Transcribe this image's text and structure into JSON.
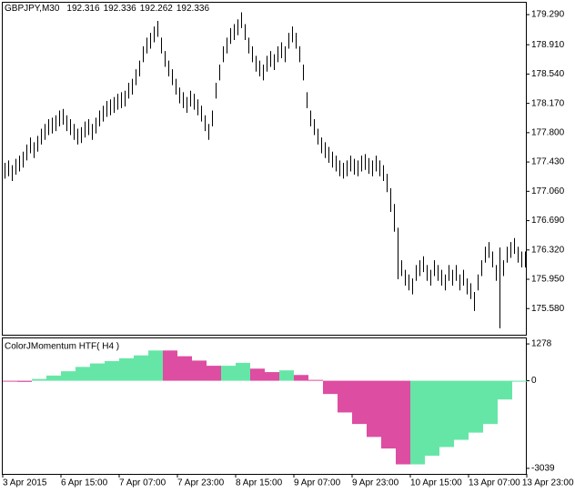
{
  "chart_data": [
    {
      "type": "hlbar",
      "title": "GBPJPY,M30",
      "quote": [
        192.316,
        192.336,
        192.262,
        192.336
      ],
      "color": "#000000",
      "xlim": [
        0,
        144
      ],
      "xticks": [
        {
          "value": 0,
          "label": "3 Apr 2015"
        },
        {
          "value": 16,
          "label": "6 Apr 15:00"
        },
        {
          "value": 32,
          "label": "7 Apr 07:00"
        },
        {
          "value": 48,
          "label": "7 Apr 23:00"
        },
        {
          "value": 64,
          "label": "8 Apr 15:00"
        },
        {
          "value": 80,
          "label": "9 Apr 07:00"
        },
        {
          "value": 96,
          "label": "9 Apr 23:00"
        },
        {
          "value": 112,
          "label": "10 Apr 15:00"
        },
        {
          "value": 128,
          "label": "13 Apr 07:00"
        },
        {
          "value": 144,
          "label": "13 Apr 23:00"
        }
      ],
      "ylim": [
        175.25,
        179.44
      ],
      "yticks": [
        {
          "value": 179.29,
          "label": "179.290"
        },
        {
          "value": 178.91,
          "label": "178.910"
        },
        {
          "value": 178.54,
          "label": "178.540"
        },
        {
          "value": 178.17,
          "label": "178.170"
        },
        {
          "value": 177.8,
          "label": "177.800"
        },
        {
          "value": 177.43,
          "label": "177.430"
        },
        {
          "value": 177.06,
          "label": "177.060"
        },
        {
          "value": 176.69,
          "label": "176.690"
        },
        {
          "value": 176.32,
          "label": "176.320"
        },
        {
          "value": 175.95,
          "label": "175.950"
        },
        {
          "value": 175.58,
          "label": "175.580"
        }
      ],
      "high": [
        177.42,
        177.45,
        177.39,
        177.47,
        177.51,
        177.56,
        177.65,
        177.74,
        177.68,
        177.76,
        177.85,
        177.91,
        177.97,
        177.99,
        178.02,
        178.08,
        178.1,
        178.02,
        177.97,
        177.91,
        177.85,
        177.87,
        177.94,
        177.97,
        177.91,
        177.99,
        178.08,
        178.14,
        178.2,
        178.22,
        178.25,
        178.29,
        178.31,
        178.33,
        178.43,
        178.48,
        178.6,
        178.71,
        178.89,
        179.0,
        179.06,
        179.14,
        179.21,
        179.0,
        178.83,
        178.71,
        178.6,
        178.48,
        178.37,
        178.31,
        178.25,
        178.33,
        178.29,
        178.22,
        178.14,
        178.02,
        177.91,
        178.08,
        178.43,
        178.66,
        178.89,
        179.0,
        179.12,
        179.17,
        179.23,
        179.32,
        179.17,
        179.0,
        178.89,
        178.77,
        178.71,
        178.66,
        178.77,
        178.83,
        178.79,
        178.89,
        178.94,
        178.89,
        179.06,
        179.14,
        179.06,
        178.89,
        178.66,
        178.31,
        178.08,
        177.97,
        177.85,
        177.74,
        177.68,
        177.62,
        177.56,
        177.51,
        177.45,
        177.42,
        177.45,
        177.51,
        177.47,
        177.45,
        177.51,
        177.53,
        177.48,
        177.45,
        177.51,
        177.45,
        177.39,
        177.28,
        177.1,
        176.9,
        176.6,
        176.19,
        176.07,
        176.01,
        175.96,
        176.13,
        176.19,
        176.24,
        176.13,
        176.07,
        176.19,
        176.13,
        176.07,
        176.01,
        176.13,
        176.07,
        176.13,
        176.01,
        176.07,
        175.96,
        175.9,
        175.79,
        176.01,
        176.19,
        176.36,
        176.42,
        176.3,
        176.13,
        176.35,
        176.19,
        176.36,
        176.42,
        176.47,
        176.36,
        176.3,
        176.3
      ],
      "low": [
        177.22,
        177.25,
        177.19,
        177.27,
        177.31,
        177.36,
        177.45,
        177.54,
        177.48,
        177.56,
        177.65,
        177.71,
        177.77,
        177.79,
        177.82,
        177.88,
        177.9,
        177.82,
        177.77,
        177.71,
        177.65,
        177.67,
        177.74,
        177.77,
        177.71,
        177.79,
        177.88,
        177.94,
        178.0,
        178.02,
        178.05,
        178.09,
        178.11,
        178.13,
        178.23,
        178.28,
        178.4,
        178.51,
        178.69,
        178.8,
        178.86,
        178.94,
        179.01,
        178.8,
        178.63,
        178.51,
        178.4,
        178.28,
        178.17,
        178.11,
        178.05,
        178.13,
        178.09,
        178.02,
        177.94,
        177.82,
        177.71,
        177.88,
        178.23,
        178.46,
        178.69,
        178.8,
        178.92,
        178.97,
        179.03,
        179.12,
        178.97,
        178.8,
        178.69,
        178.57,
        178.51,
        178.46,
        178.57,
        178.63,
        178.59,
        178.69,
        178.74,
        178.69,
        178.86,
        178.94,
        178.86,
        178.69,
        178.46,
        178.11,
        177.88,
        177.77,
        177.65,
        177.54,
        177.48,
        177.42,
        177.36,
        177.31,
        177.25,
        177.22,
        177.25,
        177.31,
        177.27,
        177.25,
        177.31,
        177.33,
        177.28,
        177.25,
        177.31,
        177.25,
        177.19,
        177.05,
        176.8,
        176.55,
        175.95,
        175.99,
        175.87,
        175.81,
        175.76,
        175.93,
        175.99,
        176.04,
        175.93,
        175.87,
        175.99,
        175.93,
        175.87,
        175.81,
        175.93,
        175.87,
        175.93,
        175.81,
        175.87,
        175.76,
        175.7,
        175.55,
        175.81,
        175.99,
        176.16,
        176.22,
        176.1,
        175.93,
        175.33,
        175.99,
        176.16,
        176.22,
        176.27,
        176.16,
        176.1,
        176.1
      ]
    },
    {
      "type": "bar",
      "title": "ColorJMomentum HTF( H4 )",
      "xlim": [
        0,
        144
      ],
      "ylim": [
        -3200,
        1470
      ],
      "yticks": [
        1278,
        0,
        -3039
      ],
      "values": [
        -30,
        -40,
        60,
        180,
        330,
        480,
        600,
        680,
        780,
        880,
        1050,
        1050,
        850,
        700,
        520,
        520,
        620,
        420,
        300,
        360,
        200,
        30,
        -460,
        -1100,
        -1500,
        -1950,
        -2350,
        -2900,
        -2900,
        -2600,
        -2300,
        -2050,
        -1800,
        -1500,
        -650,
        -20
      ],
      "colors": [
        "#dd4da1",
        "#dd4da1",
        "#66e6a6",
        "#66e6a6",
        "#66e6a6",
        "#66e6a6",
        "#66e6a6",
        "#66e6a6",
        "#66e6a6",
        "#66e6a6",
        "#66e6a6",
        "#dd4da1",
        "#dd4da1",
        "#dd4da1",
        "#dd4da1",
        "#66e6a6",
        "#66e6a6",
        "#dd4da1",
        "#dd4da1",
        "#66e6a6",
        "#dd4da1",
        "#dd4da1",
        "#dd4da1",
        "#dd4da1",
        "#dd4da1",
        "#dd4da1",
        "#dd4da1",
        "#dd4da1",
        "#66e6a6",
        "#66e6a6",
        "#66e6a6",
        "#66e6a6",
        "#66e6a6",
        "#66e6a6",
        "#66e6a6",
        "#66e6a6"
      ]
    }
  ]
}
